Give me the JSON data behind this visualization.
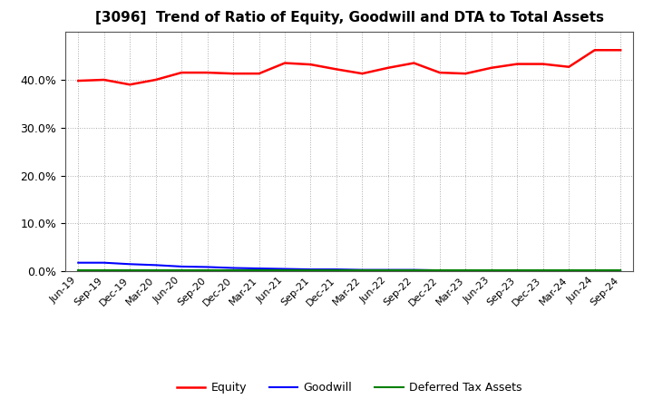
{
  "title": "[3096]  Trend of Ratio of Equity, Goodwill and DTA to Total Assets",
  "x_labels": [
    "Jun-19",
    "Sep-19",
    "Dec-19",
    "Mar-20",
    "Jun-20",
    "Sep-20",
    "Dec-20",
    "Mar-21",
    "Jun-21",
    "Sep-21",
    "Dec-21",
    "Mar-22",
    "Jun-22",
    "Sep-22",
    "Dec-22",
    "Mar-23",
    "Jun-23",
    "Sep-23",
    "Dec-23",
    "Mar-24",
    "Jun-24",
    "Sep-24"
  ],
  "equity": [
    0.398,
    0.4,
    0.39,
    0.4,
    0.415,
    0.415,
    0.413,
    0.413,
    0.435,
    0.432,
    0.422,
    0.413,
    0.425,
    0.435,
    0.415,
    0.413,
    0.425,
    0.433,
    0.433,
    0.427,
    0.462,
    0.462
  ],
  "goodwill": [
    0.018,
    0.018,
    0.015,
    0.013,
    0.01,
    0.009,
    0.007,
    0.006,
    0.005,
    0.004,
    0.004,
    0.003,
    0.003,
    0.003,
    0.002,
    0.002,
    0.002,
    0.001,
    0.001,
    0.001,
    0.001,
    0.001
  ],
  "dta": [
    0.002,
    0.002,
    0.002,
    0.002,
    0.002,
    0.002,
    0.002,
    0.002,
    0.002,
    0.002,
    0.002,
    0.002,
    0.002,
    0.002,
    0.002,
    0.002,
    0.002,
    0.002,
    0.002,
    0.002,
    0.002,
    0.002
  ],
  "equity_color": "#ff0000",
  "goodwill_color": "#0000ff",
  "dta_color": "#008000",
  "ylim": [
    0.0,
    0.5
  ],
  "yticks": [
    0.0,
    0.1,
    0.2,
    0.3,
    0.4
  ],
  "background_color": "#ffffff",
  "plot_bg_color": "#ffffff",
  "grid_color": "#aaaaaa",
  "title_fontsize": 11,
  "tick_fontsize": 8,
  "legend_labels": [
    "Equity",
    "Goodwill",
    "Deferred Tax Assets"
  ]
}
